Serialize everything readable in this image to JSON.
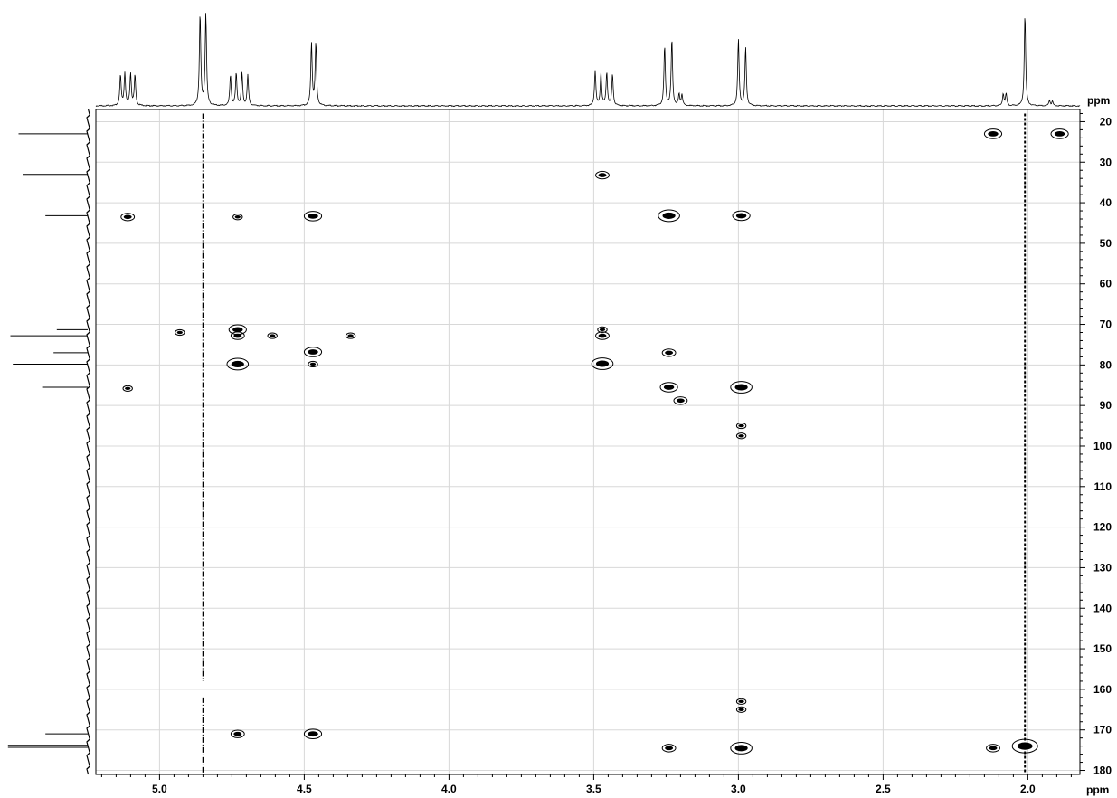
{
  "chart_data": {
    "type": "scatter",
    "title": "",
    "x_axis": {
      "unit_label": "ppm",
      "min": 1.82,
      "max": 5.22,
      "reversed": true,
      "ticks": [
        5.0,
        4.5,
        4.0,
        3.5,
        3.0,
        2.5,
        2.0
      ],
      "tick_labels": [
        "5.0",
        "4.5",
        "4.0",
        "3.5",
        "3.0",
        "2.5",
        "2.0"
      ]
    },
    "y_axis": {
      "unit_label": "ppm",
      "min": 17,
      "max": 181,
      "reversed": true,
      "position": "right",
      "ticks": [
        20,
        30,
        40,
        50,
        60,
        70,
        80,
        90,
        100,
        110,
        120,
        130,
        140,
        150,
        160,
        170,
        180
      ],
      "tick_labels": [
        "20",
        "30",
        "40",
        "50",
        "60",
        "70",
        "80",
        "90",
        "100",
        "110",
        "120",
        "130",
        "140",
        "150",
        "160",
        "170",
        "180"
      ]
    },
    "grid": true,
    "cross_peaks": [
      {
        "h": 5.11,
        "c": 43.5,
        "size": 2
      },
      {
        "h": 4.73,
        "c": 43.5,
        "size": 1
      },
      {
        "h": 4.47,
        "c": 43.3,
        "size": 3
      },
      {
        "h": 3.24,
        "c": 43.2,
        "size": 4
      },
      {
        "h": 2.99,
        "c": 43.2,
        "size": 3
      },
      {
        "h": 3.47,
        "c": 33.2,
        "size": 2
      },
      {
        "h": 2.12,
        "c": 23.0,
        "size": 3
      },
      {
        "h": 1.89,
        "c": 23.0,
        "size": 3
      },
      {
        "h": 4.73,
        "c": 71.3,
        "size": 3
      },
      {
        "h": 4.73,
        "c": 72.8,
        "size": 2
      },
      {
        "h": 4.61,
        "c": 72.8,
        "size": 1
      },
      {
        "h": 4.34,
        "c": 72.8,
        "size": 1
      },
      {
        "h": 4.93,
        "c": 72.0,
        "size": 1
      },
      {
        "h": 3.47,
        "c": 71.3,
        "size": 1
      },
      {
        "h": 3.47,
        "c": 72.8,
        "size": 2
      },
      {
        "h": 4.47,
        "c": 76.8,
        "size": 3
      },
      {
        "h": 3.24,
        "c": 77.0,
        "size": 2
      },
      {
        "h": 4.73,
        "c": 79.8,
        "size": 4
      },
      {
        "h": 3.47,
        "c": 79.7,
        "size": 4
      },
      {
        "h": 4.47,
        "c": 79.8,
        "size": 1
      },
      {
        "h": 3.24,
        "c": 85.5,
        "size": 3
      },
      {
        "h": 2.99,
        "c": 85.5,
        "size": 4
      },
      {
        "h": 3.2,
        "c": 88.8,
        "size": 2
      },
      {
        "h": 5.11,
        "c": 85.8,
        "size": 1
      },
      {
        "h": 4.73,
        "c": 171.0,
        "size": 2
      },
      {
        "h": 4.47,
        "c": 171.0,
        "size": 3
      },
      {
        "h": 3.24,
        "c": 174.5,
        "size": 2
      },
      {
        "h": 2.99,
        "c": 174.5,
        "size": 4
      },
      {
        "h": 2.12,
        "c": 174.5,
        "size": 2
      },
      {
        "h": 2.01,
        "c": 174.0,
        "size": 5
      },
      {
        "h": 2.99,
        "c": 163.0,
        "size": 1
      },
      {
        "h": 2.99,
        "c": 165.0,
        "size": 1
      },
      {
        "h": 2.99,
        "c": 95.0,
        "size": 1
      },
      {
        "h": 2.99,
        "c": 97.5,
        "size": 1
      }
    ],
    "streaks": [
      {
        "h": 4.85,
        "c_from": 18,
        "c_to": 158,
        "style": "dashdot"
      },
      {
        "h": 4.85,
        "c_from": 162,
        "c_to": 181,
        "style": "dashdot"
      },
      {
        "h": 2.01,
        "c_from": 18,
        "c_to": 181,
        "style": "dashed"
      }
    ],
    "h_spectrum": {
      "baseline_ppm_range": [
        1.82,
        5.22
      ],
      "peaks": [
        {
          "ppm": 5.135,
          "height": 0.33
        },
        {
          "ppm": 5.12,
          "height": 0.35
        },
        {
          "ppm": 5.1,
          "height": 0.35
        },
        {
          "ppm": 5.085,
          "height": 0.33
        },
        {
          "ppm": 4.86,
          "height": 1.0
        },
        {
          "ppm": 4.84,
          "height": 1.0
        },
        {
          "ppm": 4.755,
          "height": 0.33
        },
        {
          "ppm": 4.735,
          "height": 0.35
        },
        {
          "ppm": 4.715,
          "height": 0.35
        },
        {
          "ppm": 4.695,
          "height": 0.33
        },
        {
          "ppm": 4.475,
          "height": 0.68
        },
        {
          "ppm": 4.46,
          "height": 0.68
        },
        {
          "ppm": 3.495,
          "height": 0.38
        },
        {
          "ppm": 3.475,
          "height": 0.36
        },
        {
          "ppm": 3.455,
          "height": 0.36
        },
        {
          "ppm": 3.435,
          "height": 0.34
        },
        {
          "ppm": 3.255,
          "height": 0.65
        },
        {
          "ppm": 3.23,
          "height": 0.72
        },
        {
          "ppm": 3.205,
          "height": 0.12
        },
        {
          "ppm": 3.195,
          "height": 0.12
        },
        {
          "ppm": 3.0,
          "height": 0.72
        },
        {
          "ppm": 2.975,
          "height": 0.63
        },
        {
          "ppm": 2.085,
          "height": 0.13
        },
        {
          "ppm": 2.075,
          "height": 0.13
        },
        {
          "ppm": 2.01,
          "height": 1.0
        },
        {
          "ppm": 1.925,
          "height": 0.06
        },
        {
          "ppm": 1.915,
          "height": 0.05
        }
      ]
    },
    "c_spectrum": {
      "lines": [
        {
          "ppm": 23.0,
          "height": 0.85
        },
        {
          "ppm": 33.0,
          "height": 0.8
        },
        {
          "ppm": 43.2,
          "height": 0.52
        },
        {
          "ppm": 71.3,
          "height": 0.38
        },
        {
          "ppm": 72.8,
          "height": 0.95
        },
        {
          "ppm": 77.0,
          "height": 0.42
        },
        {
          "ppm": 79.8,
          "height": 0.92
        },
        {
          "ppm": 85.5,
          "height": 0.56
        },
        {
          "ppm": 171.0,
          "height": 0.52
        },
        {
          "ppm": 173.8,
          "height": 0.98
        },
        {
          "ppm": 174.3,
          "height": 0.98
        }
      ]
    }
  }
}
